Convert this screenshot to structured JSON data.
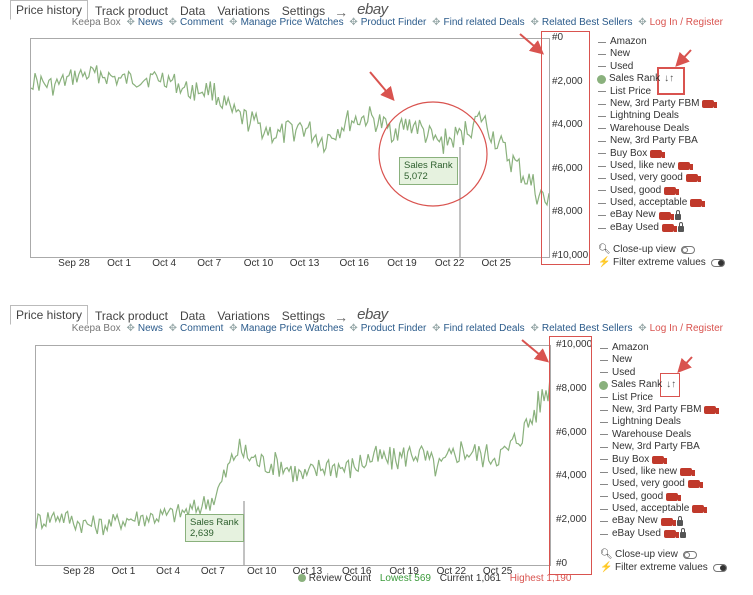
{
  "tabs": [
    "Price history",
    "Track product",
    "Data",
    "Variations",
    "Settings"
  ],
  "arrow": "→",
  "ebay": "ebay",
  "links": {
    "keepa_box": "Keepa Box",
    "items": [
      "News",
      "Comment",
      "Manage Price Watches",
      "Product Finder",
      "Find related Deals",
      "Related Best Sellers"
    ],
    "login": "Log In / Register"
  },
  "legend": [
    {
      "label": "Amazon",
      "dot": false,
      "truck": false,
      "lock": false,
      "sort": false
    },
    {
      "label": "New",
      "dot": false,
      "truck": false,
      "lock": false,
      "sort": false
    },
    {
      "label": "Used",
      "dot": false,
      "truck": false,
      "lock": false,
      "sort": false
    },
    {
      "label": "Sales Rank",
      "dot": true,
      "truck": false,
      "lock": false,
      "sort": true
    },
    {
      "label": "List Price",
      "dot": false,
      "truck": false,
      "lock": false,
      "sort": false
    },
    {
      "label": "New, 3rd Party FBM",
      "dot": false,
      "truck": true,
      "lock": false,
      "sort": false
    },
    {
      "label": "Lightning Deals",
      "dot": false,
      "truck": false,
      "lock": false,
      "sort": false
    },
    {
      "label": "Warehouse Deals",
      "dot": false,
      "truck": false,
      "lock": false,
      "sort": false
    },
    {
      "label": "New, 3rd Party FBA",
      "dot": false,
      "truck": false,
      "lock": false,
      "sort": false
    },
    {
      "label": "Buy Box",
      "dot": false,
      "truck": true,
      "lock": false,
      "sort": false
    },
    {
      "label": "Used, like new",
      "dot": false,
      "truck": true,
      "lock": false,
      "sort": false
    },
    {
      "label": "Used, very good",
      "dot": false,
      "truck": true,
      "lock": false,
      "sort": false
    },
    {
      "label": "Used, good",
      "dot": false,
      "truck": true,
      "lock": false,
      "sort": false
    },
    {
      "label": "Used, acceptable",
      "dot": false,
      "truck": true,
      "lock": false,
      "sort": false
    },
    {
      "label": "eBay New",
      "dot": false,
      "truck": true,
      "lock": true,
      "sort": false
    },
    {
      "label": "eBay Used",
      "dot": false,
      "truck": true,
      "lock": true,
      "sort": false
    }
  ],
  "options": {
    "closeup": "Close-up view",
    "filter": "Filter extreme values"
  },
  "sort_glyph": "↓↑",
  "colors": {
    "series": "#8ab17d",
    "accent": "#d9534f",
    "link": "#2a5a8a"
  },
  "charts": [
    {
      "x_ticks": [
        "Sep 28",
        "Oct 1",
        "Oct 4",
        "Oct 7",
        "Oct 10",
        "Oct 13",
        "Oct 16",
        "Oct 19",
        "Oct 22",
        "Oct 25"
      ],
      "y_ticks": [
        "#0",
        "#2,000",
        "#4,000",
        "#6,000",
        "#8,000",
        "#10,000"
      ],
      "y_inverted": true,
      "tooltip": {
        "label": "Sales Rank",
        "value": "5,072"
      }
    },
    {
      "x_ticks": [
        "Sep 28",
        "Oct 1",
        "Oct 4",
        "Oct 7",
        "Oct 10",
        "Oct 13",
        "Oct 16",
        "Oct 19",
        "Oct 22",
        "Oct 25"
      ],
      "y_ticks": [
        "#10,000",
        "#8,000",
        "#6,000",
        "#4,000",
        "#2,000",
        "#0"
      ],
      "y_inverted": false,
      "tooltip": {
        "label": "Sales Rank",
        "value": "2,639"
      }
    }
  ],
  "chart_data": [
    {
      "type": "line",
      "ylabel": "",
      "ylim": [
        0,
        10000
      ],
      "y_inverted": true,
      "x": [
        "Sep 26",
        "Sep 28",
        "Sep 30",
        "Oct 1",
        "Oct 3",
        "Oct 4",
        "Oct 6",
        "Oct 7",
        "Oct 9",
        "Oct 10",
        "Oct 12",
        "Oct 13",
        "Oct 15",
        "Oct 16",
        "Oct 18",
        "Oct 19",
        "Oct 20",
        "Oct 21",
        "Oct 22",
        "Oct 23",
        "Oct 24",
        "Oct 25",
        "Oct 26",
        "Oct 27"
      ],
      "series": [
        {
          "values": [
            1900,
            2200,
            1700,
            1600,
            1900,
            1800,
            1800,
            2400,
            2300,
            3500,
            3900,
            4500,
            4000,
            4700,
            3800,
            3600,
            4200,
            3900,
            4800,
            4500,
            3600,
            5200,
            6400,
            7700
          ]
        }
      ]
    },
    {
      "type": "line",
      "ylabel": "",
      "ylim": [
        0,
        10000
      ],
      "y_inverted": false,
      "x": [
        "Sep 26",
        "Sep 28",
        "Sep 30",
        "Oct 1",
        "Oct 3",
        "Oct 4",
        "Oct 6",
        "Oct 7",
        "Oct 9",
        "Oct 10",
        "Oct 12",
        "Oct 13",
        "Oct 15",
        "Oct 16",
        "Oct 18",
        "Oct 19",
        "Oct 20",
        "Oct 21",
        "Oct 22",
        "Oct 23",
        "Oct 24",
        "Oct 25",
        "Oct 26",
        "Oct 27"
      ],
      "series": [
        {
          "values": [
            2000,
            2300,
            1900,
            1800,
            2100,
            2200,
            2300,
            2500,
            3100,
            5300,
            4700,
            4600,
            4000,
            4600,
            4400,
            4900,
            4800,
            5200,
            4400,
            5300,
            5000,
            5100,
            6400,
            8300
          ]
        }
      ]
    }
  ],
  "bottom": {
    "review": "Review Count",
    "lowest": "Lowest 569",
    "current": "Current 1,061",
    "highest": "Highest 1,190"
  }
}
